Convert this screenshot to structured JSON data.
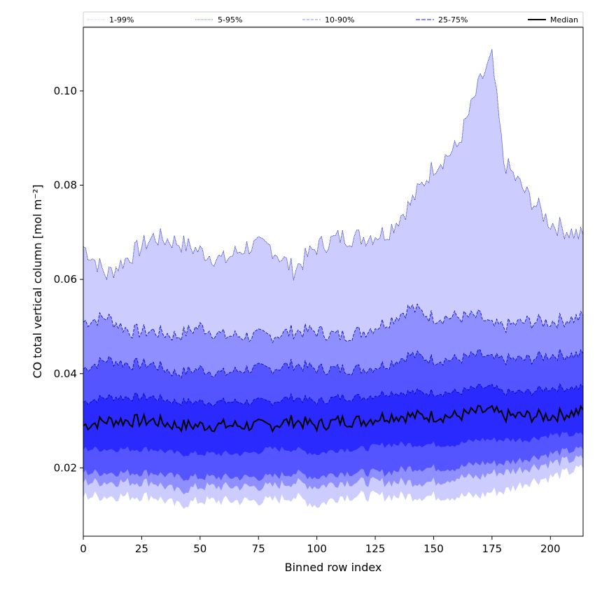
{
  "chart_data": {
    "type": "area",
    "title": "",
    "xlabel": "Binned row index",
    "ylabel": "CO total vertical column [mol m⁻²]",
    "xlim": [
      0,
      214
    ],
    "ylim": [
      0.0055,
      0.1135
    ],
    "xticks": [
      0,
      25,
      50,
      75,
      100,
      125,
      150,
      175,
      200
    ],
    "yticks": [
      0.02,
      0.04,
      0.06,
      0.08,
      0.1
    ],
    "ytick_labels": [
      "0.02",
      "0.04",
      "0.06",
      "0.08",
      "0.10"
    ],
    "legend_position": "top (expanded across plot width)",
    "legend": [
      "1-99%",
      "5-95%",
      "10-90%",
      "25-75%",
      "Median"
    ],
    "colors": {
      "band_1_99": "#ffffff",
      "band_5_95": "#ccccff",
      "band_10_90": "#8f8fff",
      "band_25_75": "#5555ff",
      "inner": "#2a2aff",
      "median": "#000000",
      "dash_line": "#0000aa"
    },
    "x": [
      0,
      10,
      20,
      30,
      40,
      50,
      60,
      70,
      80,
      90,
      100,
      110,
      120,
      130,
      140,
      150,
      160,
      170,
      175,
      180,
      190,
      200,
      214
    ],
    "series": [
      {
        "name": "1-99%",
        "lower": [
          0.014,
          0.014,
          0.014,
          0.014,
          0.012,
          0.013,
          0.013,
          0.013,
          0.013,
          0.014,
          0.012,
          0.014,
          0.014,
          0.014,
          0.014,
          0.014,
          0.014,
          0.014,
          0.015,
          0.015,
          0.017,
          0.018,
          0.02
        ],
        "upper": [
          0.067,
          0.061,
          0.065,
          0.069,
          0.068,
          0.066,
          0.064,
          0.067,
          0.067,
          0.062,
          0.067,
          0.069,
          0.069,
          0.07,
          0.076,
          0.084,
          0.088,
          0.102,
          0.107,
          0.085,
          0.078,
          0.072,
          0.069
        ]
      },
      {
        "name": "5-95%",
        "lower": [
          0.017,
          0.017,
          0.017,
          0.017,
          0.015,
          0.016,
          0.016,
          0.016,
          0.016,
          0.017,
          0.016,
          0.017,
          0.017,
          0.017,
          0.017,
          0.017,
          0.018,
          0.018,
          0.019,
          0.019,
          0.02,
          0.021,
          0.022
        ],
        "upper": [
          0.051,
          0.052,
          0.049,
          0.049,
          0.048,
          0.05,
          0.048,
          0.048,
          0.048,
          0.049,
          0.049,
          0.048,
          0.049,
          0.051,
          0.054,
          0.052,
          0.052,
          0.052,
          0.05,
          0.05,
          0.051,
          0.051,
          0.052
        ]
      },
      {
        "name": "10-90%",
        "lower": [
          0.019,
          0.019,
          0.019,
          0.019,
          0.018,
          0.018,
          0.018,
          0.018,
          0.018,
          0.019,
          0.018,
          0.019,
          0.019,
          0.019,
          0.02,
          0.02,
          0.02,
          0.021,
          0.021,
          0.021,
          0.022,
          0.023,
          0.024
        ],
        "upper": [
          0.041,
          0.043,
          0.042,
          0.042,
          0.04,
          0.041,
          0.04,
          0.041,
          0.041,
          0.042,
          0.041,
          0.041,
          0.041,
          0.042,
          0.044,
          0.043,
          0.043,
          0.044,
          0.043,
          0.043,
          0.043,
          0.044,
          0.044
        ]
      },
      {
        "name": "25-75%",
        "lower": [
          0.024,
          0.024,
          0.024,
          0.024,
          0.023,
          0.023,
          0.023,
          0.023,
          0.024,
          0.024,
          0.023,
          0.024,
          0.024,
          0.025,
          0.025,
          0.025,
          0.025,
          0.026,
          0.026,
          0.026,
          0.026,
          0.027,
          0.027
        ],
        "upper": [
          0.034,
          0.035,
          0.035,
          0.035,
          0.034,
          0.034,
          0.034,
          0.034,
          0.034,
          0.035,
          0.034,
          0.035,
          0.035,
          0.036,
          0.036,
          0.036,
          0.036,
          0.037,
          0.037,
          0.036,
          0.036,
          0.037,
          0.037
        ]
      },
      {
        "name": "Median",
        "values": [
          0.029,
          0.03,
          0.03,
          0.03,
          0.029,
          0.029,
          0.029,
          0.029,
          0.029,
          0.03,
          0.029,
          0.03,
          0.03,
          0.031,
          0.031,
          0.031,
          0.031,
          0.032,
          0.032,
          0.031,
          0.031,
          0.031,
          0.032
        ]
      }
    ]
  }
}
